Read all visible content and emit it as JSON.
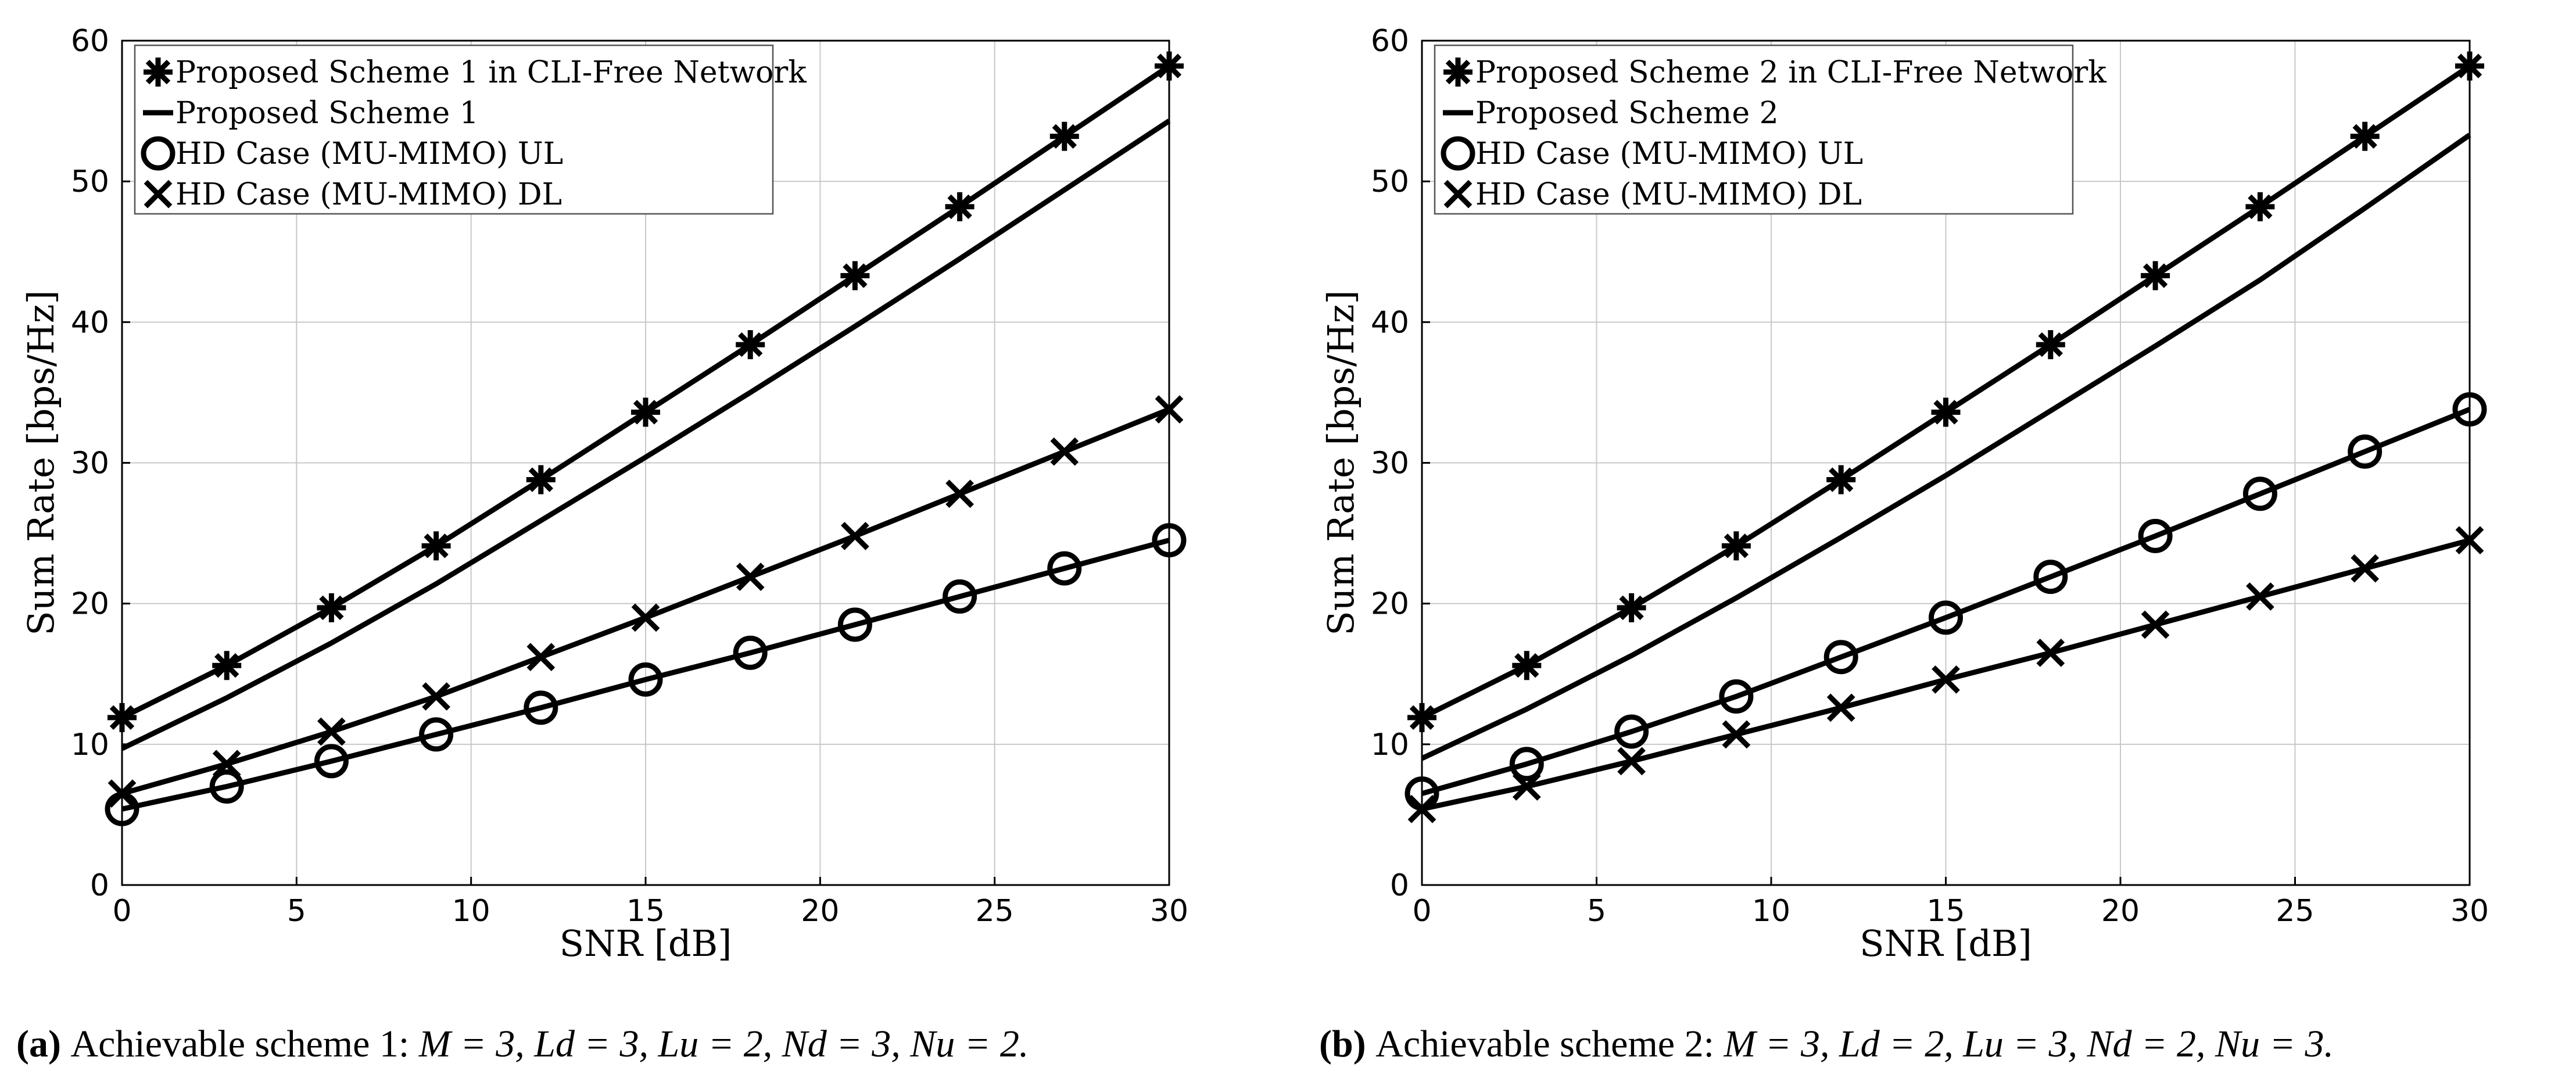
{
  "chart_data": [
    {
      "type": "line",
      "id": "a",
      "xlabel": "SNR [dB]",
      "ylabel": "Sum Rate [bps/Hz]",
      "xlim": [
        0,
        30
      ],
      "ylim": [
        0,
        60
      ],
      "xticks": [
        0,
        5,
        10,
        15,
        20,
        25,
        30
      ],
      "yticks": [
        0,
        10,
        20,
        30,
        40,
        50,
        60
      ],
      "grid": true,
      "legend_position": "top-left",
      "caption": {
        "tag": "(a)",
        "text": "Achievable scheme 1: M = 3, Ld = 3, Lu = 2, Nd = 3, Nu = 2."
      },
      "x": [
        0,
        3,
        6,
        9,
        12,
        15,
        18,
        21,
        24,
        27,
        30
      ],
      "series": [
        {
          "name": "Proposed Scheme 1 in CLI-Free Network",
          "marker": "star",
          "values": [
            11.9,
            15.6,
            19.7,
            24.1,
            28.8,
            33.6,
            38.4,
            43.3,
            48.2,
            53.2,
            58.2
          ]
        },
        {
          "name": "Proposed Scheme 1",
          "marker": "none",
          "values": [
            9.7,
            13.3,
            17.2,
            21.4,
            25.9,
            30.4,
            35.0,
            39.7,
            44.5,
            49.4,
            54.3
          ]
        },
        {
          "name": "HD Case (MU-MIMO) UL",
          "marker": "circle",
          "values": [
            5.4,
            7.0,
            8.8,
            10.7,
            12.6,
            14.6,
            16.5,
            18.5,
            20.5,
            22.5,
            24.5
          ]
        },
        {
          "name": "HD Case (MU-MIMO) DL",
          "marker": "x",
          "values": [
            6.5,
            8.6,
            10.9,
            13.4,
            16.2,
            19.0,
            21.9,
            24.8,
            27.8,
            30.8,
            33.8
          ]
        }
      ]
    },
    {
      "type": "line",
      "id": "b",
      "xlabel": "SNR [dB]",
      "ylabel": "Sum Rate [bps/Hz]",
      "xlim": [
        0,
        30
      ],
      "ylim": [
        0,
        60
      ],
      "xticks": [
        0,
        5,
        10,
        15,
        20,
        25,
        30
      ],
      "yticks": [
        0,
        10,
        20,
        30,
        40,
        50,
        60
      ],
      "grid": true,
      "legend_position": "top-left",
      "caption": {
        "tag": "(b)",
        "text": "Achievable scheme 2: M = 3, Ld = 2, Lu = 3, Nd = 2, Nu = 3."
      },
      "x": [
        0,
        3,
        6,
        9,
        12,
        15,
        18,
        21,
        24,
        27,
        30
      ],
      "series": [
        {
          "name": "Proposed Scheme 2 in CLI-Free Network",
          "marker": "star",
          "values": [
            11.9,
            15.6,
            19.7,
            24.1,
            28.8,
            33.6,
            38.4,
            43.3,
            48.2,
            53.2,
            58.2
          ]
        },
        {
          "name": "Proposed Scheme 2",
          "marker": "none",
          "values": [
            9.0,
            12.5,
            16.3,
            20.4,
            24.7,
            29.1,
            33.7,
            38.3,
            43.0,
            48.1,
            53.3
          ]
        },
        {
          "name": "HD Case (MU-MIMO) UL",
          "marker": "circle",
          "values": [
            6.5,
            8.6,
            10.9,
            13.4,
            16.2,
            19.0,
            21.9,
            24.8,
            27.8,
            30.8,
            33.8
          ]
        },
        {
          "name": "HD Case (MU-MIMO) DL",
          "marker": "x",
          "values": [
            5.4,
            7.0,
            8.8,
            10.7,
            12.6,
            14.6,
            16.5,
            18.5,
            20.5,
            22.5,
            24.5
          ]
        }
      ]
    }
  ]
}
